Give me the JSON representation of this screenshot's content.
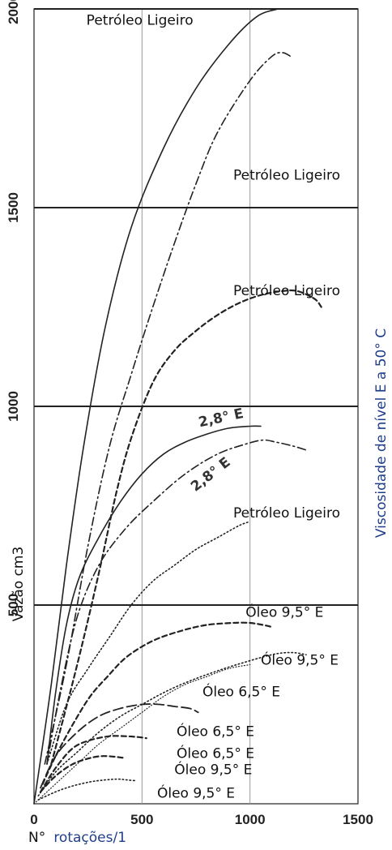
{
  "chart_data": {
    "type": "line",
    "title": "",
    "xlabel_prefix": "N°",
    "xlabel_main": "rotações/1",
    "ylabel": "Vazão cm3",
    "right_label": "Viscosidade de nível E a 50° C",
    "xlim": [
      0,
      1500
    ],
    "ylim": [
      0,
      2000
    ],
    "x_ticks": [
      "0",
      "500",
      "1000",
      "1500"
    ],
    "y_ticks": [
      "500",
      "1000",
      "1500",
      "2000"
    ],
    "x_tick_values": [
      0,
      500,
      1000,
      1500
    ],
    "y_tick_values": [
      500,
      1000,
      1500,
      2000
    ],
    "horizontal_band_lines": [
      500,
      1000,
      1500,
      2000
    ],
    "vertical_ref_lines": [
      500,
      1000
    ],
    "series": [
      {
        "style": "solid",
        "x": [
          0,
          80,
          150,
          230,
          330,
          450,
          600,
          750,
          900,
          1030,
          1130
        ],
        "y": [
          0,
          300,
          600,
          900,
          1200,
          1450,
          1650,
          1800,
          1910,
          1980,
          2000
        ]
      },
      {
        "style": "dashdot",
        "x": [
          50,
          150,
          250,
          350,
          450,
          550,
          650,
          750,
          850,
          1000,
          1100,
          1150,
          1190
        ],
        "y": [
          100,
          350,
          650,
          900,
          1080,
          1250,
          1410,
          1560,
          1690,
          1820,
          1880,
          1890,
          1880
        ]
      },
      {
        "style": "dashed",
        "x": [
          80,
          200,
          300,
          380,
          450,
          550,
          650,
          750,
          850,
          950,
          1050,
          1150,
          1220,
          1300,
          1330
        ],
        "y": [
          100,
          350,
          580,
          780,
          920,
          1060,
          1140,
          1190,
          1230,
          1260,
          1280,
          1290,
          1290,
          1270,
          1250
        ]
      },
      {
        "style": "solid",
        "x": [
          60,
          100,
          150,
          210,
          300,
          400,
          500,
          600,
          700,
          800,
          900,
          1000,
          1050
        ],
        "y": [
          100,
          280,
          450,
          570,
          670,
          760,
          830,
          880,
          910,
          930,
          945,
          950,
          950
        ]
      },
      {
        "style": "dashdot",
        "x": [
          60,
          120,
          200,
          300,
          420,
          550,
          700,
          850,
          980,
          1060,
          1120,
          1200,
          1260
        ],
        "y": [
          100,
          280,
          470,
          600,
          690,
          760,
          830,
          880,
          905,
          915,
          910,
          900,
          890
        ]
      },
      {
        "style": "dotted",
        "x": [
          60,
          150,
          250,
          350,
          450,
          550,
          650,
          750,
          850,
          950,
          1000
        ],
        "y": [
          100,
          250,
          340,
          420,
          500,
          560,
          600,
          640,
          670,
          700,
          710
        ]
      },
      {
        "style": "dashed",
        "x": [
          40,
          100,
          180,
          260,
          340,
          430,
          550,
          680,
          800,
          920,
          1000,
          1060,
          1100
        ],
        "y": [
          50,
          120,
          200,
          270,
          320,
          370,
          410,
          435,
          450,
          455,
          455,
          450,
          445
        ]
      },
      {
        "style": "dotted",
        "x": [
          20,
          100,
          200,
          300,
          400,
          500,
          620,
          750,
          880,
          1000,
          1100,
          1160,
          1210,
          1260
        ],
        "y": [
          20,
          80,
          130,
          180,
          220,
          250,
          285,
          315,
          340,
          360,
          375,
          380,
          380,
          375
        ]
      },
      {
        "style": "longdash",
        "x": [
          30,
          100,
          200,
          300,
          400,
          500,
          580,
          650,
          720,
          760
        ],
        "y": [
          40,
          120,
          180,
          220,
          240,
          250,
          250,
          245,
          240,
          230
        ]
      },
      {
        "style": "dashed",
        "x": [
          30,
          100,
          180,
          260,
          350,
          420,
          480,
          520
        ],
        "y": [
          30,
          90,
          140,
          160,
          170,
          170,
          168,
          165
        ]
      },
      {
        "style": "dashed",
        "x": [
          30,
          100,
          180,
          260,
          320,
          380,
          420
        ],
        "y": [
          30,
          70,
          100,
          115,
          120,
          118,
          115
        ]
      },
      {
        "style": "dotted",
        "x": [
          20,
          100,
          180,
          260,
          330,
          390,
          430,
          470
        ],
        "y": [
          10,
          30,
          45,
          55,
          60,
          62,
          60,
          58
        ]
      },
      {
        "style": "dotted_fine",
        "x": [
          0,
          60,
          140,
          220,
          300,
          400,
          500,
          600,
          700,
          800,
          900,
          1000
        ],
        "y": [
          0,
          30,
          70,
          110,
          150,
          190,
          230,
          270,
          300,
          320,
          340,
          350
        ]
      }
    ],
    "annotations": [
      {
        "text": "Petróleo Ligeiro",
        "x": 490,
        "y": 1960,
        "class": "curve-label"
      },
      {
        "text": "Petróleo Ligeiro",
        "x": 1170,
        "y": 1570,
        "class": "curve-label"
      },
      {
        "text": "Petróleo Ligeiro",
        "x": 1170,
        "y": 1280,
        "class": "curve-label"
      },
      {
        "text": "2,8° E",
        "x": 870,
        "y": 960,
        "class": "curve-label-bold",
        "rotate": -12
      },
      {
        "text": "2,8° E",
        "x": 830,
        "y": 820,
        "class": "curve-label-bold",
        "rotate": -38
      },
      {
        "text": "Petróleo Ligeiro",
        "x": 1170,
        "y": 720,
        "class": "curve-label"
      },
      {
        "text": "Óleo 9,5° E",
        "x": 1160,
        "y": 470,
        "class": "curve-label"
      },
      {
        "text": "Óleo 9,5° E",
        "x": 1230,
        "y": 350,
        "class": "curve-label"
      },
      {
        "text": "Óleo 6,5° E",
        "x": 960,
        "y": 270,
        "class": "curve-label"
      },
      {
        "text": "Óleo 6,5° E",
        "x": 840,
        "y": 170,
        "class": "curve-label"
      },
      {
        "text": "Óleo 6,5° E",
        "x": 840,
        "y": 115,
        "class": "curve-label"
      },
      {
        "text": "Óleo 9,5° E",
        "x": 830,
        "y": 75,
        "class": "curve-label"
      },
      {
        "text": "Óleo 9,5° E",
        "x": 750,
        "y": 15,
        "class": "curve-label"
      }
    ],
    "grid": false,
    "legend": "none"
  }
}
